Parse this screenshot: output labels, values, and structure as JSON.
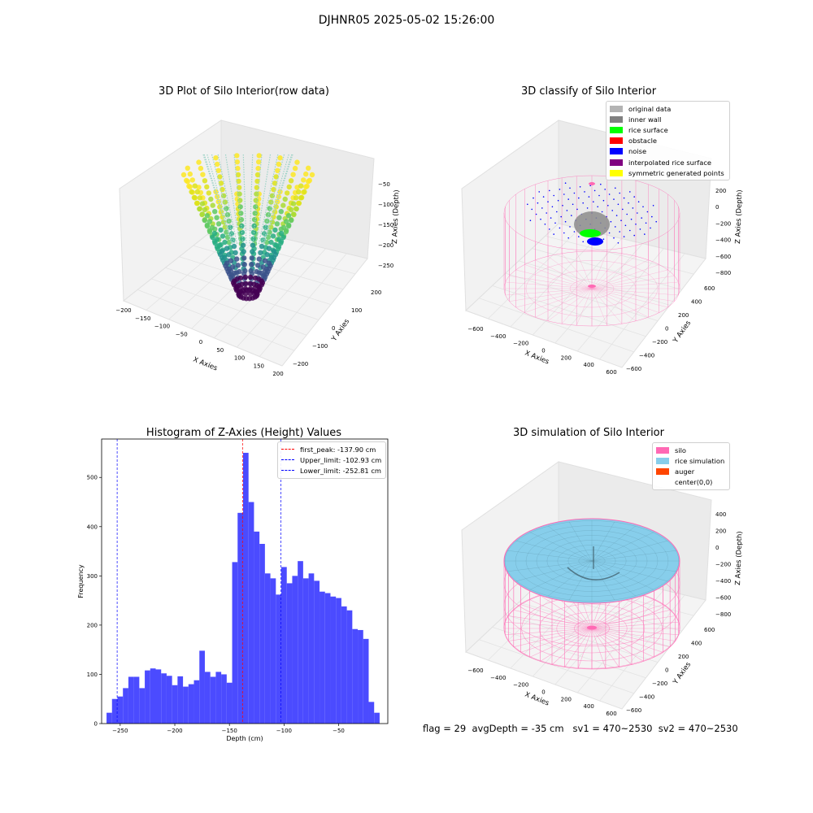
{
  "suptitle": "DJHNR05 2025-05-02 15:26:00",
  "footer": {
    "text": "flag = 29  avgDepth = -35 cm   sv1 = 470~2530  sv2 = 470~2530"
  },
  "colors": {
    "silo": "#ff69b4",
    "rice": "#87ceeb",
    "auger": "#ff4500",
    "noise": "#0000ff",
    "histogram": "#4b4bff"
  },
  "chart_data": [
    {
      "type": "scatter3d",
      "title": "3D Plot of Silo Interior(row data)",
      "xlabel": "X Axies",
      "ylabel": "Y Axies",
      "zlabel": "Z Axies (Depth)",
      "xticks": [
        "−200",
        "−150",
        "−100",
        "−50",
        "0",
        "50",
        "100",
        "150",
        "200"
      ],
      "yticks": [
        "−200",
        "−100",
        "0",
        "100",
        "200"
      ],
      "zticks": [
        "−50",
        "−100",
        "−150",
        "−200",
        "−250"
      ],
      "colormap": "viridis"
    },
    {
      "type": "scatter3d",
      "title": "3D classify of Silo Interior",
      "xlabel": "X Axies",
      "ylabel": "Y Axies",
      "zlabel": "Z Axies (Depth)",
      "xticks": [
        "−600",
        "−400",
        "−200",
        "0",
        "200",
        "400",
        "600"
      ],
      "yticks": [
        "−600",
        "−400",
        "−200",
        "0",
        "200",
        "400",
        "600"
      ],
      "zticks": [
        "200",
        "0",
        "−200",
        "−400",
        "−600",
        "−800"
      ],
      "legend": [
        {
          "label": "original data",
          "color": "#b3b3b3"
        },
        {
          "label": "inner wall",
          "color": "#808080"
        },
        {
          "label": "rice surface",
          "color": "#00ff00"
        },
        {
          "label": "obstacle",
          "color": "#ff0000"
        },
        {
          "label": "noise",
          "color": "#0000ff"
        },
        {
          "label": "interpolated rice surface",
          "color": "#800080"
        },
        {
          "label": "symmetric generated points",
          "color": "#ffff00"
        }
      ],
      "legend_position": "top-right"
    },
    {
      "type": "bar",
      "title": "Histogram of Z-Axies (Height) Values",
      "xlabel": "Depth (cm)",
      "ylabel": "Frequency",
      "xlim": [
        -267,
        -5
      ],
      "ylim": [
        0,
        578
      ],
      "xticks": [
        -250,
        -200,
        -150,
        -100,
        -50
      ],
      "yticks": [
        0,
        100,
        200,
        300,
        400,
        500
      ],
      "bin_start": -262.5,
      "bin_width": 5,
      "values": [
        22,
        50,
        55,
        72,
        95,
        95,
        72,
        108,
        112,
        110,
        102,
        97,
        78,
        96,
        75,
        80,
        88,
        148,
        105,
        95,
        105,
        100,
        83,
        328,
        428,
        550,
        450,
        390,
        365,
        305,
        295,
        262,
        318,
        285,
        300,
        330,
        295,
        305,
        290,
        268,
        265,
        258,
        255,
        238,
        230,
        192,
        190,
        172,
        44,
        22
      ],
      "vlines": [
        {
          "label": "first_peak: -137.90 cm",
          "x": -137.9,
          "color": "#ff0000"
        },
        {
          "label": "Upper_limit: -102.93 cm",
          "x": -102.93,
          "color": "#0000ff"
        },
        {
          "label": "Lower_limit: -252.81 cm",
          "x": -252.81,
          "color": "#0000ff"
        }
      ],
      "legend_position": "top-right"
    },
    {
      "type": "surface3d",
      "title": "3D simulation of Silo Interior",
      "xlabel": "X Axies",
      "ylabel": "Y Axies",
      "zlabel": "Z Axies (Depth)",
      "xticks": [
        "−600",
        "−400",
        "−200",
        "0",
        "200",
        "400",
        "600"
      ],
      "yticks": [
        "−600",
        "−400",
        "−200",
        "0",
        "200",
        "400",
        "600"
      ],
      "zticks": [
        "400",
        "200",
        "0",
        "−200",
        "−400",
        "−600",
        "−800"
      ],
      "legend": [
        {
          "label": "silo",
          "color": "#ff69b4"
        },
        {
          "label": "rice simulation",
          "color": "#87ceeb"
        },
        {
          "label": "auger",
          "color": "#ff4500"
        },
        {
          "label": "center(0,0)",
          "color": ""
        }
      ],
      "legend_position": "top-right"
    }
  ]
}
